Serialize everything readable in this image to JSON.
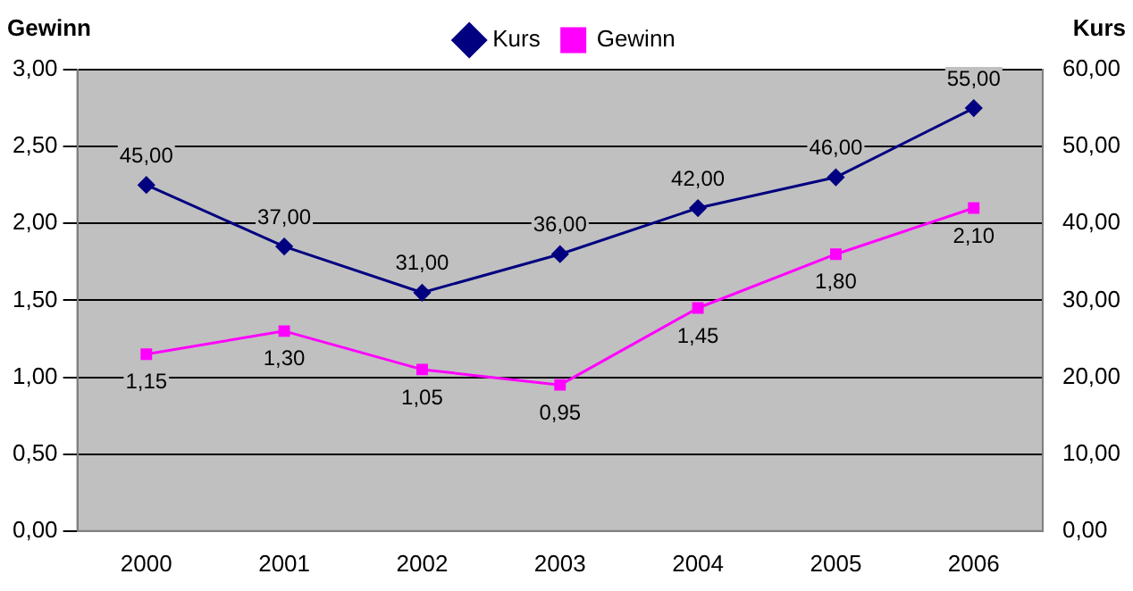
{
  "chart_data": {
    "type": "line",
    "ylabel": "Gewinn",
    "y2label": "Kurs",
    "categories": [
      "2000",
      "2001",
      "2002",
      "2003",
      "2004",
      "2005",
      "2006"
    ],
    "series": [
      {
        "name": "Kurs",
        "color": "#000080",
        "axis": "y2",
        "marker": "diamond",
        "values": [
          45,
          37,
          31,
          36,
          42,
          46,
          55
        ],
        "value_labels": [
          "45,00",
          "37,00",
          "31,00",
          "36,00",
          "42,00",
          "46,00",
          "55,00"
        ]
      },
      {
        "name": "Gewinn",
        "color": "#ff00ff",
        "axis": "y",
        "marker": "square",
        "values": [
          1.15,
          1.3,
          1.05,
          0.95,
          1.45,
          1.8,
          2.1
        ],
        "value_labels": [
          "1,15",
          "1,30",
          "1,05",
          "0,95",
          "1,45",
          "1,80",
          "2,10"
        ]
      }
    ],
    "ylim": [
      0,
      3
    ],
    "yticks": [
      {
        "value": 0,
        "label": "0,00"
      },
      {
        "value": 0.5,
        "label": "0,50"
      },
      {
        "value": 1,
        "label": "1,00"
      },
      {
        "value": 1.5,
        "label": "1,50"
      },
      {
        "value": 2,
        "label": "2,00"
      },
      {
        "value": 2.5,
        "label": "2,50"
      },
      {
        "value": 3,
        "label": "3,00"
      }
    ],
    "y2lim": [
      0,
      60
    ],
    "y2ticks": [
      {
        "value": 0,
        "label": "0,00"
      },
      {
        "value": 10,
        "label": "10,00"
      },
      {
        "value": 20,
        "label": "20,00"
      },
      {
        "value": 30,
        "label": "30,00"
      },
      {
        "value": 40,
        "label": "40,00"
      },
      {
        "value": 50,
        "label": "50,00"
      },
      {
        "value": 60,
        "label": "60,00"
      }
    ],
    "grid": "y",
    "legend": "top",
    "line_style": "solid"
  }
}
